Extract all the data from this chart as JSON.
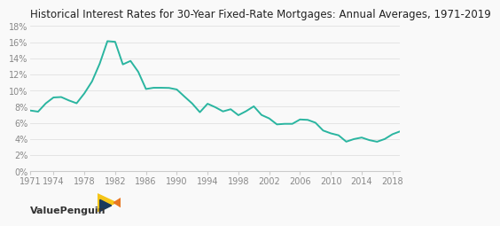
{
  "title": "Historical Interest Rates for 30-Year Fixed-Rate Mortgages: Annual Averages, 1971-2019",
  "line_color": "#2ab5a0",
  "background_color": "#f9f9f9",
  "xlim": [
    1971,
    2019
  ],
  "ylim": [
    0,
    0.18
  ],
  "xticks": [
    1971,
    1974,
    1978,
    1982,
    1986,
    1990,
    1994,
    1998,
    2002,
    2006,
    2010,
    2014,
    2018
  ],
  "yticks": [
    0,
    0.02,
    0.04,
    0.06,
    0.08,
    0.1,
    0.12,
    0.14,
    0.16,
    0.18
  ],
  "watermark": "ValuePenguin",
  "years": [
    1971,
    1972,
    1973,
    1974,
    1975,
    1976,
    1977,
    1978,
    1979,
    1980,
    1981,
    1982,
    1983,
    1984,
    1985,
    1986,
    1987,
    1988,
    1989,
    1990,
    1991,
    1992,
    1993,
    1994,
    1995,
    1996,
    1997,
    1998,
    1999,
    2000,
    2001,
    2002,
    2003,
    2004,
    2005,
    2006,
    2007,
    2008,
    2009,
    2010,
    2011,
    2012,
    2013,
    2014,
    2015,
    2016,
    2017,
    2018,
    2019
  ],
  "rates": [
    0.0752,
    0.0738,
    0.0841,
    0.0914,
    0.0919,
    0.0877,
    0.0842,
    0.0964,
    0.1113,
    0.1334,
    0.1612,
    0.1604,
    0.1324,
    0.1367,
    0.1232,
    0.1019,
    0.1034,
    0.1034,
    0.1032,
    0.1013,
    0.0925,
    0.0839,
    0.0731,
    0.0836,
    0.0793,
    0.0741,
    0.0768,
    0.0694,
    0.0744,
    0.0804,
    0.0697,
    0.0654,
    0.058,
    0.0587,
    0.0587,
    0.0641,
    0.0636,
    0.0601,
    0.0504,
    0.0469,
    0.0445,
    0.0366,
    0.0398,
    0.0417,
    0.0385,
    0.0365,
    0.0399,
    0.0458,
    0.0494
  ],
  "title_fontsize": 8.5,
  "tick_fontsize": 7,
  "watermark_fontsize": 8,
  "line_width": 1.4,
  "grid_color": "#e0e0e0",
  "spine_color": "#cccccc",
  "tick_color": "#888888",
  "title_color": "#222222",
  "watermark_color": "#333333"
}
